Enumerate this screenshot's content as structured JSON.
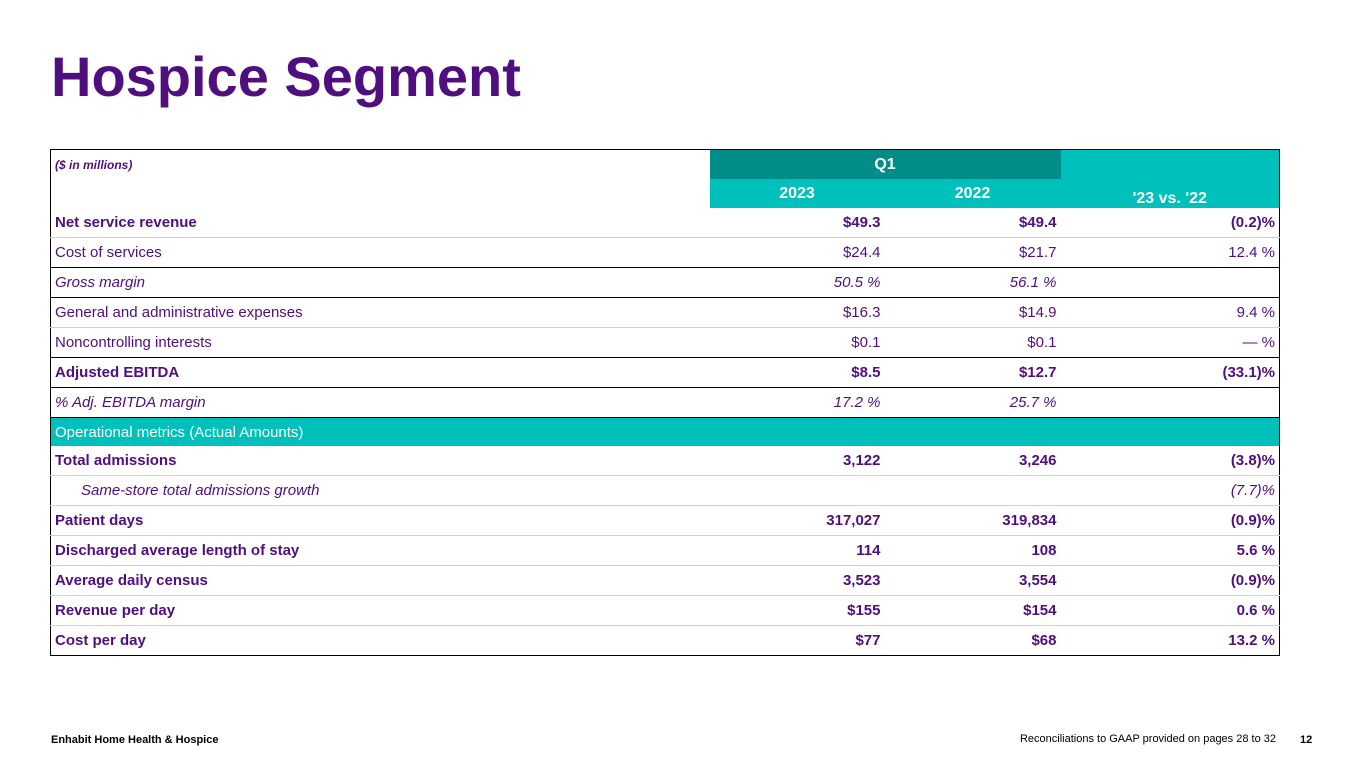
{
  "title": "Hospice Segment",
  "table": {
    "unit_label": "($ in millions)",
    "period_label": "Q1",
    "col_2023": "2023",
    "col_2022": "2022",
    "col_change": "'23 vs. '22",
    "rows": [
      {
        "label": "Net service revenue",
        "v2023": "$49.3",
        "v2022": "$49.4",
        "change": "(0.2)%"
      },
      {
        "label": "Cost of services",
        "v2023": "$24.4",
        "v2022": "$21.7",
        "change": "12.4 %"
      },
      {
        "label": "Gross margin",
        "v2023": "50.5 %",
        "v2022": "56.1 %",
        "change": ""
      },
      {
        "label": "General and administrative expenses",
        "v2023": "$16.3",
        "v2022": "$14.9",
        "change": "9.4 %"
      },
      {
        "label": "Noncontrolling interests",
        "v2023": "$0.1",
        "v2022": "$0.1",
        "change": "— %"
      },
      {
        "label": "Adjusted EBITDA",
        "v2023": "$8.5",
        "v2022": "$12.7",
        "change": "(33.1)%"
      },
      {
        "label": "%  Adj. EBITDA margin",
        "v2023": "17.2 %",
        "v2022": "25.7 %",
        "change": ""
      }
    ],
    "ops_header": "Operational metrics (Actual Amounts)",
    "ops_rows": [
      {
        "label": "Total admissions",
        "v2023": "3,122",
        "v2022": "3,246",
        "change": "(3.8)%"
      },
      {
        "label": "Same-store total admissions growth",
        "v2023": "",
        "v2022": "",
        "change": "(7.7)%"
      },
      {
        "label": "Patient days",
        "v2023": "317,027",
        "v2022": "319,834",
        "change": "(0.9)%"
      },
      {
        "label": "Discharged average length of stay",
        "v2023": "114",
        "v2022": "108",
        "change": "5.6 %"
      },
      {
        "label": "Average daily census",
        "v2023": "3,523",
        "v2022": "3,554",
        "change": "(0.9)%"
      },
      {
        "label": "Revenue per day",
        "v2023": "$155",
        "v2022": "$154",
        "change": "0.6 %"
      },
      {
        "label": "Cost per day",
        "v2023": "$77",
        "v2022": "$68",
        "change": "13.2 %"
      }
    ]
  },
  "footer": {
    "company": "Enhabit Home Health & Hospice",
    "note": "Reconciliations to GAAP provided on pages 28 to 32",
    "page": "12"
  }
}
